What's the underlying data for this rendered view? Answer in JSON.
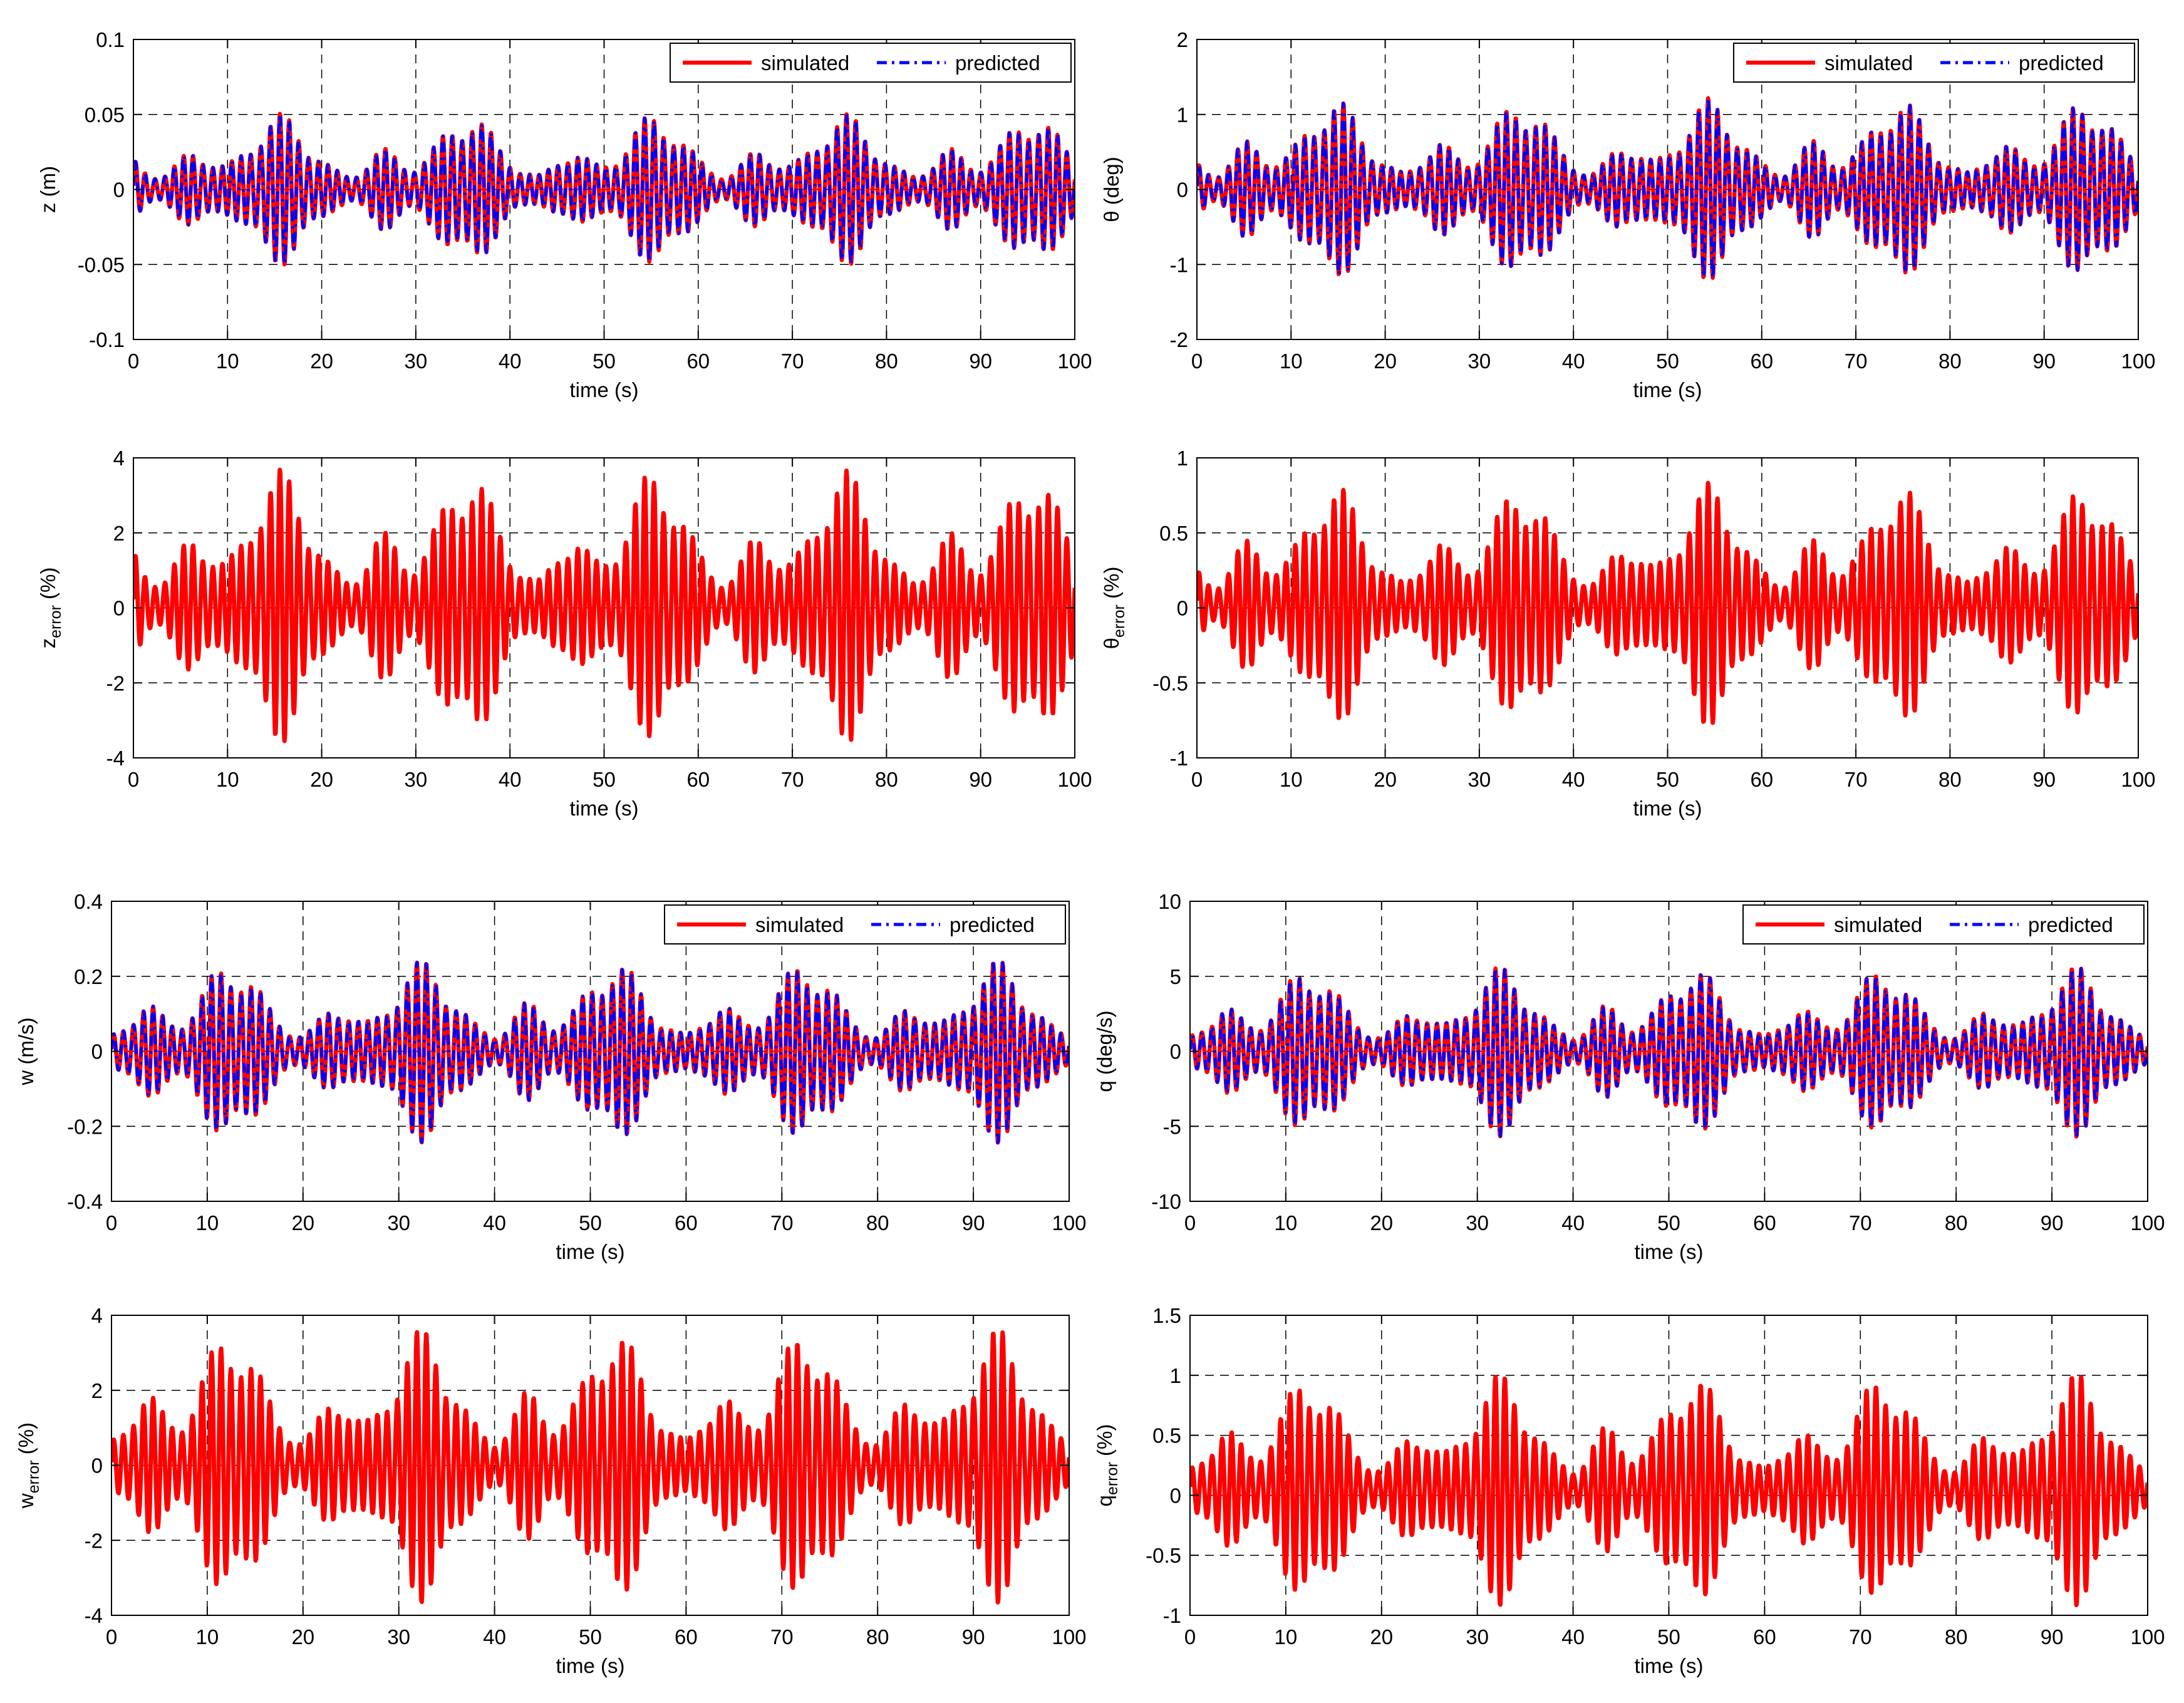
{
  "figure": {
    "background": "#ffffff"
  },
  "style": {
    "simulated_color": "#ff0000",
    "predicted_color": "#0000ff",
    "grid_color": "#000000"
  },
  "chart_data": [
    {
      "id": "z",
      "type": "line",
      "title": "",
      "xlabel": "time (s)",
      "ylabel": {
        "base": "z",
        "sub": "",
        "unit": "(m)"
      },
      "xlim": [
        0,
        100
      ],
      "ylim": [
        -0.1,
        0.1
      ],
      "xticks": [
        0,
        10,
        20,
        30,
        40,
        50,
        60,
        70,
        80,
        90,
        100
      ],
      "yticks": [
        -0.1,
        -0.05,
        0,
        0.05,
        0.1
      ],
      "ytick_labels": [
        "-0.1",
        "-0.05",
        "0",
        "0.05",
        "0.1"
      ],
      "legend": {
        "position": "top-right",
        "entries": [
          "simulated",
          "predicted"
        ]
      },
      "grid": true,
      "series": [
        {
          "name": "simulated",
          "style": "solid",
          "model": {
            "base": "z",
            "amplitude": 0.05,
            "offset": 0,
            "period_s": 20,
            "phase_s": 3,
            "t_step_s": 0.05
          }
        },
        {
          "name": "predicted",
          "style": "dashdot",
          "model": {
            "base": "z",
            "amplitude": 0.05,
            "offset": 0,
            "period_s": 20,
            "phase_s": 3,
            "t_step_s": 0.05
          }
        }
      ]
    },
    {
      "id": "theta",
      "type": "line",
      "title": "",
      "xlabel": "time (s)",
      "ylabel": {
        "base": "θ",
        "sub": "",
        "unit": "(deg)"
      },
      "xlim": [
        0,
        100
      ],
      "ylim": [
        -2,
        2
      ],
      "xticks": [
        0,
        10,
        20,
        30,
        40,
        50,
        60,
        70,
        80,
        90,
        100
      ],
      "yticks": [
        -2,
        -1,
        0,
        1,
        2
      ],
      "ytick_labels": [
        "-2",
        "-1",
        "0",
        "1",
        "2"
      ],
      "legend": {
        "position": "top-right",
        "entries": [
          "simulated",
          "predicted"
        ]
      },
      "grid": true,
      "series": [
        {
          "name": "simulated",
          "style": "solid",
          "model": {
            "base": "theta",
            "amplitude": 1.2,
            "offset": 0,
            "period_s": 20,
            "phase_s": 2,
            "t_step_s": 0.05
          }
        },
        {
          "name": "predicted",
          "style": "dashdot",
          "model": {
            "base": "theta",
            "amplitude": 1.2,
            "offset": 0,
            "period_s": 20,
            "phase_s": 2,
            "t_step_s": 0.05
          }
        }
      ]
    },
    {
      "id": "z_error",
      "type": "line",
      "title": "",
      "xlabel": "time (s)",
      "ylabel": {
        "base": "z",
        "sub": "error",
        "unit": "(%)"
      },
      "xlim": [
        0,
        100
      ],
      "ylim": [
        -4,
        4
      ],
      "xticks": [
        0,
        10,
        20,
        30,
        40,
        50,
        60,
        70,
        80,
        90,
        100
      ],
      "yticks": [
        -4,
        -2,
        0,
        2,
        4
      ],
      "ytick_labels": [
        "-4",
        "-2",
        "0",
        "2",
        "4"
      ],
      "grid": true,
      "series": [
        {
          "name": "error",
          "style": "solid_thick",
          "model": {
            "base": "z",
            "amplitude": 3.6,
            "offset": 0.05,
            "period_s": 20,
            "phase_s": 3,
            "t_step_s": 0.05
          }
        }
      ]
    },
    {
      "id": "theta_error",
      "type": "line",
      "title": "",
      "xlabel": "time (s)",
      "ylabel": {
        "base": "θ",
        "sub": "error",
        "unit": "(%)"
      },
      "xlim": [
        0,
        100
      ],
      "ylim": [
        -1,
        1
      ],
      "xticks": [
        0,
        10,
        20,
        30,
        40,
        50,
        60,
        70,
        80,
        90,
        100
      ],
      "yticks": [
        -1,
        -0.5,
        0,
        0.5,
        1
      ],
      "ytick_labels": [
        "-1",
        "-0.5",
        "0",
        "0.5",
        "1"
      ],
      "grid": true,
      "series": [
        {
          "name": "error",
          "style": "solid_thick",
          "model": {
            "base": "theta",
            "amplitude": 0.8,
            "offset": 0.02,
            "period_s": 20,
            "phase_s": 2,
            "t_step_s": 0.05
          }
        }
      ]
    },
    {
      "id": "w",
      "type": "line",
      "title": "",
      "xlabel": "time (s)",
      "ylabel": {
        "base": "w",
        "sub": "",
        "unit": "(m/s)"
      },
      "xlim": [
        0,
        100
      ],
      "ylim": [
        -0.4,
        0.4
      ],
      "xticks": [
        0,
        10,
        20,
        30,
        40,
        50,
        60,
        70,
        80,
        90,
        100
      ],
      "yticks": [
        -0.4,
        -0.2,
        0,
        0.2,
        0.4
      ],
      "ytick_labels": [
        "-0.4",
        "-0.2",
        "0",
        "0.2",
        "0.4"
      ],
      "legend": {
        "position": "top-right",
        "entries": [
          "simulated",
          "predicted"
        ]
      },
      "grid": true,
      "series": [
        {
          "name": "simulated",
          "style": "solid",
          "model": {
            "base": "w",
            "amplitude": 0.24,
            "offset": 0,
            "period_s": 20,
            "phase_s": 0,
            "t_step_s": 0.05
          }
        },
        {
          "name": "predicted",
          "style": "dashdot",
          "model": {
            "base": "w",
            "amplitude": 0.24,
            "offset": 0,
            "period_s": 20,
            "phase_s": 0,
            "t_step_s": 0.05
          }
        }
      ]
    },
    {
      "id": "q",
      "type": "line",
      "title": "",
      "xlabel": "time (s)",
      "ylabel": {
        "base": "q",
        "sub": "",
        "unit": "(deg/s)"
      },
      "xlim": [
        0,
        100
      ],
      "ylim": [
        -10,
        10
      ],
      "xticks": [
        0,
        10,
        20,
        30,
        40,
        50,
        60,
        70,
        80,
        90,
        100
      ],
      "yticks": [
        -10,
        -5,
        0,
        5,
        10
      ],
      "ytick_labels": [
        "-10",
        "-5",
        "0",
        "5",
        "10"
      ],
      "legend": {
        "position": "top-right",
        "entries": [
          "simulated",
          "predicted"
        ]
      },
      "grid": true,
      "series": [
        {
          "name": "simulated",
          "style": "solid",
          "model": {
            "base": "q",
            "amplitude": 5.6,
            "offset": 0,
            "period_s": 20,
            "phase_s": 0,
            "t_step_s": 0.05
          }
        },
        {
          "name": "predicted",
          "style": "dashdot",
          "model": {
            "base": "q",
            "amplitude": 5.6,
            "offset": 0,
            "period_s": 20,
            "phase_s": 0,
            "t_step_s": 0.05
          }
        }
      ]
    },
    {
      "id": "w_error",
      "type": "line",
      "title": "",
      "xlabel": "time (s)",
      "ylabel": {
        "base": "w",
        "sub": "error",
        "unit": "(%)"
      },
      "xlim": [
        0,
        100
      ],
      "ylim": [
        -4,
        4
      ],
      "xticks": [
        0,
        10,
        20,
        30,
        40,
        50,
        60,
        70,
        80,
        90,
        100
      ],
      "yticks": [
        -4,
        -2,
        0,
        2,
        4
      ],
      "ytick_labels": [
        "-4",
        "-2",
        "0",
        "2",
        "4"
      ],
      "grid": true,
      "series": [
        {
          "name": "error",
          "style": "solid_thick",
          "model": {
            "base": "w",
            "amplitude": 3.6,
            "offset": 0,
            "period_s": 20,
            "phase_s": 0,
            "t_step_s": 0.05
          }
        }
      ]
    },
    {
      "id": "q_error",
      "type": "line",
      "title": "",
      "xlabel": "time (s)",
      "ylabel": {
        "base": "q",
        "sub": "error",
        "unit": "(%)"
      },
      "xlim": [
        0,
        100
      ],
      "ylim": [
        -1,
        1.5
      ],
      "xticks": [
        0,
        10,
        20,
        30,
        40,
        50,
        60,
        70,
        80,
        90,
        100
      ],
      "yticks": [
        -1,
        -0.5,
        0,
        0.5,
        1,
        1.5
      ],
      "ytick_labels": [
        "-1",
        "-0.5",
        "0",
        "0.5",
        "1",
        "1.5"
      ],
      "grid": true,
      "series": [
        {
          "name": "error",
          "style": "solid_thick",
          "model": {
            "base": "q",
            "amplitude": 0.95,
            "offset": 0.05,
            "period_s": 20,
            "phase_s": 0,
            "t_step_s": 0.05
          }
        }
      ]
    }
  ]
}
